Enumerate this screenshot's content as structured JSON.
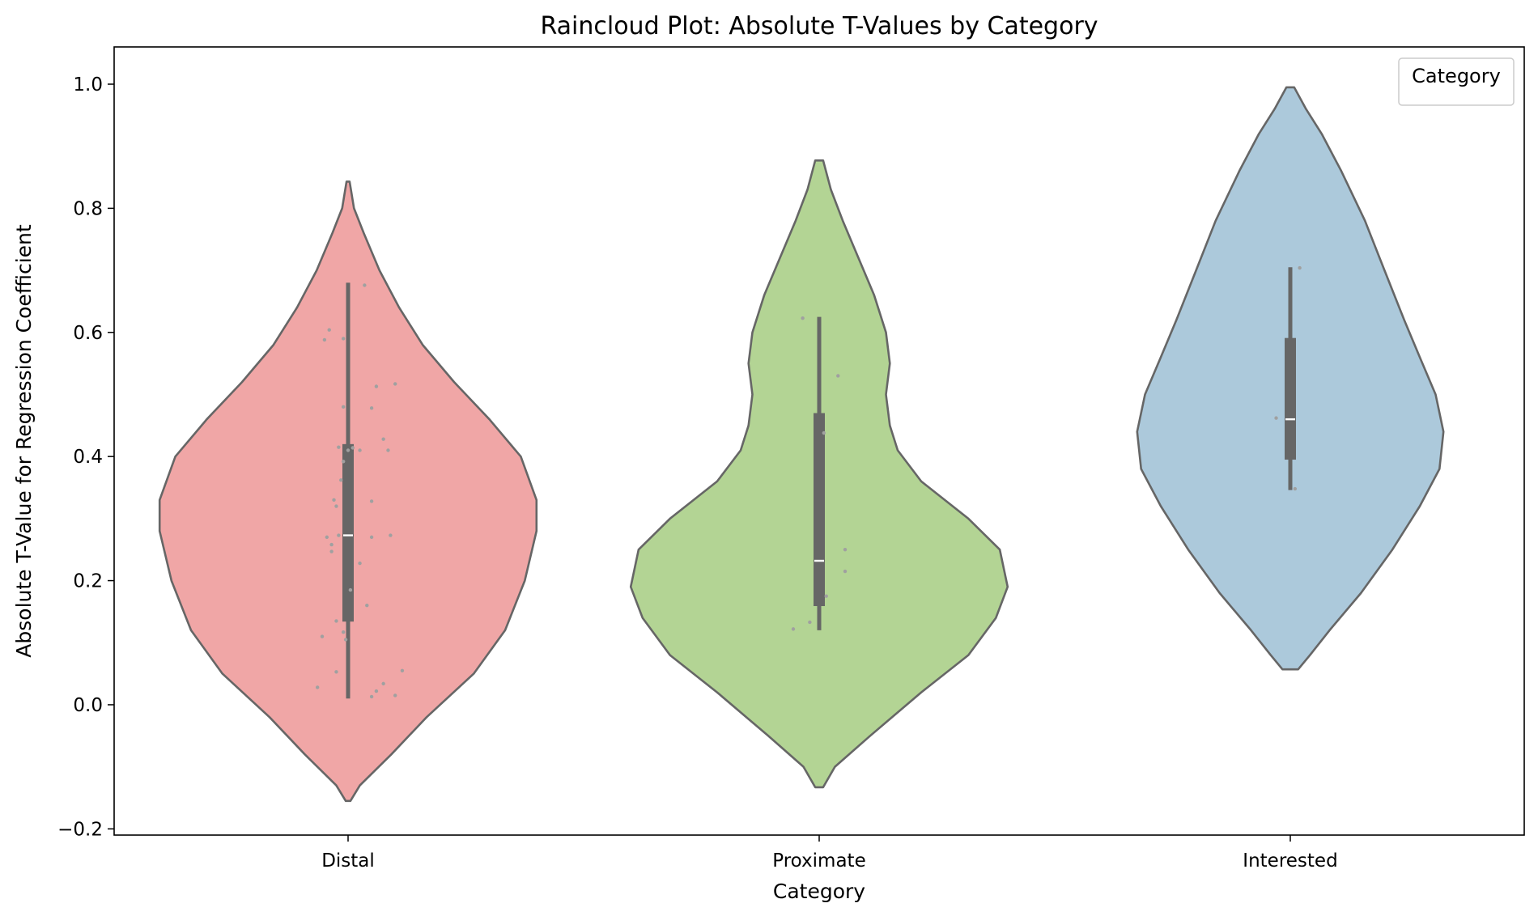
{
  "chart_data": {
    "type": "violin",
    "title": "Raincloud Plot: Absolute T-Values by Category",
    "xlabel": "Category",
    "ylabel": "Absolute T-Value for Regression Coefficient",
    "categories": [
      "Distal",
      "Proximate",
      "Interested"
    ],
    "ylim": [
      -0.21,
      1.06
    ],
    "yticks": [
      -0.2,
      0.0,
      0.2,
      0.4,
      0.6,
      0.8,
      1.0
    ],
    "ytick_labels": [
      "−0.2",
      "0.0",
      "0.2",
      "0.4",
      "0.6",
      "0.8",
      "1.0"
    ],
    "grid": false,
    "legend": {
      "title": "Category",
      "placement": "top-right",
      "entries": []
    },
    "colors": {
      "Distal": "#f0a6a6",
      "Proximate": "#b3d494",
      "Interested": "#acc9db",
      "outline": "#666666",
      "box": "#666666",
      "points": "#a0a0a0"
    },
    "violins": [
      {
        "category": "Distal",
        "y_min": -0.155,
        "y_max": 0.843,
        "profile": [
          [
            -0.155,
            0.006
          ],
          [
            -0.13,
            0.03
          ],
          [
            -0.08,
            0.11
          ],
          [
            -0.02,
            0.2
          ],
          [
            0.05,
            0.32
          ],
          [
            0.12,
            0.4
          ],
          [
            0.2,
            0.45
          ],
          [
            0.28,
            0.48
          ],
          [
            0.33,
            0.48
          ],
          [
            0.4,
            0.44
          ],
          [
            0.46,
            0.36
          ],
          [
            0.52,
            0.27
          ],
          [
            0.58,
            0.19
          ],
          [
            0.64,
            0.13
          ],
          [
            0.7,
            0.08
          ],
          [
            0.76,
            0.04
          ],
          [
            0.8,
            0.015
          ],
          [
            0.843,
            0.004
          ]
        ],
        "box": {
          "whisker_low": 0.01,
          "q1": 0.134,
          "median": 0.273,
          "q3": 0.42,
          "whisker_high": 0.68
        },
        "points": [
          [
            -0.13,
            0.028
          ],
          [
            -0.05,
            0.053
          ],
          [
            0.1,
            0.013
          ],
          [
            0.12,
            0.022
          ],
          [
            0.15,
            0.034
          ],
          [
            0.2,
            0.015
          ],
          [
            0.23,
            0.055
          ],
          [
            -0.11,
            0.11
          ],
          [
            -0.05,
            0.135
          ],
          [
            -0.02,
            0.117
          ],
          [
            -0.01,
            0.105
          ],
          [
            0.08,
            0.16
          ],
          [
            0.01,
            0.185
          ],
          [
            -0.07,
            0.247
          ],
          [
            -0.09,
            0.27
          ],
          [
            -0.07,
            0.258
          ],
          [
            -0.04,
            0.273
          ],
          [
            0.05,
            0.228
          ],
          [
            0.1,
            0.27
          ],
          [
            0.18,
            0.273
          ],
          [
            -0.06,
            0.33
          ],
          [
            -0.05,
            0.32
          ],
          [
            -0.03,
            0.362
          ],
          [
            0.1,
            0.328
          ],
          [
            -0.02,
            0.392
          ],
          [
            0.0,
            0.41
          ],
          [
            0.05,
            0.41
          ],
          [
            0.02,
            0.414
          ],
          [
            0.15,
            0.428
          ],
          [
            0.17,
            0.41
          ],
          [
            -0.04,
            0.415
          ],
          [
            -0.02,
            0.48
          ],
          [
            0.1,
            0.478
          ],
          [
            0.12,
            0.513
          ],
          [
            0.2,
            0.517
          ],
          [
            -0.1,
            0.588
          ],
          [
            -0.08,
            0.604
          ],
          [
            -0.02,
            0.59
          ],
          [
            0.07,
            0.676
          ]
        ]
      },
      {
        "category": "Proximate",
        "y_min": -0.133,
        "y_max": 0.877,
        "profile": [
          [
            -0.133,
            0.01
          ],
          [
            -0.1,
            0.04
          ],
          [
            -0.05,
            0.13
          ],
          [
            0.02,
            0.26
          ],
          [
            0.08,
            0.38
          ],
          [
            0.14,
            0.45
          ],
          [
            0.19,
            0.48
          ],
          [
            0.25,
            0.46
          ],
          [
            0.3,
            0.38
          ],
          [
            0.36,
            0.26
          ],
          [
            0.41,
            0.2
          ],
          [
            0.45,
            0.18
          ],
          [
            0.5,
            0.17
          ],
          [
            0.55,
            0.18
          ],
          [
            0.6,
            0.17
          ],
          [
            0.66,
            0.14
          ],
          [
            0.72,
            0.1
          ],
          [
            0.78,
            0.06
          ],
          [
            0.83,
            0.03
          ],
          [
            0.877,
            0.01
          ]
        ],
        "box": {
          "whisker_low": 0.12,
          "q1": 0.159,
          "median": 0.232,
          "q3": 0.47,
          "whisker_high": 0.625
        },
        "points": [
          [
            -0.11,
            0.122
          ],
          [
            -0.04,
            0.133
          ],
          [
            0.03,
            0.175
          ],
          [
            0.02,
            0.438
          ],
          [
            0.08,
            0.53
          ],
          [
            0.11,
            0.25
          ],
          [
            0.11,
            0.215
          ],
          [
            -0.07,
            0.623
          ]
        ]
      },
      {
        "category": "Interested",
        "y_min": 0.057,
        "y_max": 0.995,
        "profile": [
          [
            0.057,
            0.02
          ],
          [
            0.08,
            0.05
          ],
          [
            0.12,
            0.1
          ],
          [
            0.18,
            0.18
          ],
          [
            0.25,
            0.26
          ],
          [
            0.32,
            0.33
          ],
          [
            0.38,
            0.38
          ],
          [
            0.44,
            0.39
          ],
          [
            0.5,
            0.37
          ],
          [
            0.56,
            0.33
          ],
          [
            0.62,
            0.29
          ],
          [
            0.7,
            0.24
          ],
          [
            0.78,
            0.19
          ],
          [
            0.86,
            0.13
          ],
          [
            0.92,
            0.08
          ],
          [
            0.96,
            0.04
          ],
          [
            0.995,
            0.01
          ]
        ],
        "box": {
          "whisker_low": 0.346,
          "q1": 0.395,
          "median": 0.46,
          "q3": 0.591,
          "whisker_high": 0.705
        },
        "points": [
          [
            -0.06,
            0.462
          ],
          [
            0.02,
            0.348
          ],
          [
            0.04,
            0.704
          ]
        ]
      }
    ]
  }
}
